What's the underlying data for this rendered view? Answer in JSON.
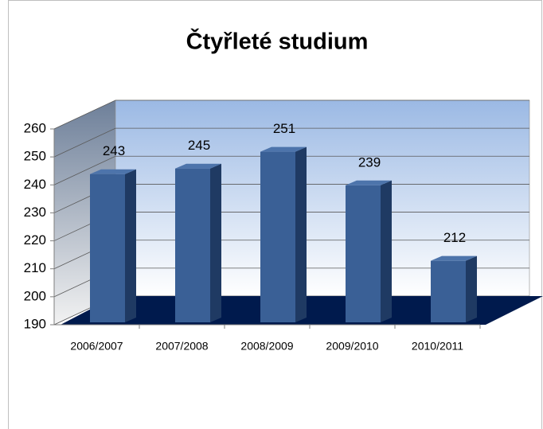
{
  "chart_data": {
    "type": "bar3d",
    "title": "Čtyřleté studium",
    "categories": [
      "2006/2007",
      "2007/2008",
      "2008/2009",
      "2009/2010",
      "2010/2011"
    ],
    "values": [
      243,
      245,
      251,
      239,
      212
    ],
    "color": "#3a6096",
    "ylim": [
      190,
      260
    ],
    "yticks": [
      190,
      200,
      210,
      220,
      230,
      240,
      250,
      260
    ],
    "grid": true
  }
}
